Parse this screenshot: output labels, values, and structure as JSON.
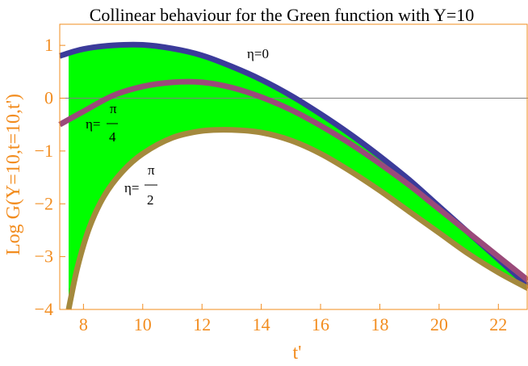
{
  "chart_data": {
    "type": "area",
    "title": "Collinear behaviour for the Green function with Y=10",
    "xlabel": "t'",
    "ylabel": "Log G(Y=10,t=10,t')",
    "xlim": [
      7.2,
      23
    ],
    "ylim": [
      -4,
      1.4
    ],
    "xticks": [
      "8",
      "10",
      "12",
      "14",
      "16",
      "18",
      "20",
      "22"
    ],
    "yticks": [
      "1",
      "0",
      "−1",
      "−2",
      "−3",
      "−4"
    ],
    "grid": false,
    "zero_line": true,
    "fill_between": {
      "upper": "eta=0",
      "lower": "eta=pi/2",
      "from_x": 7.5,
      "color": "#00ff00"
    },
    "series": [
      {
        "name": "η=0",
        "color": "#3b3b9a",
        "x": [
          7.2,
          8,
          9,
          10,
          11,
          12,
          13,
          14,
          15,
          16,
          17,
          18,
          19,
          20,
          21,
          22,
          23
        ],
        "y": [
          0.8,
          0.93,
          1.0,
          1.01,
          0.94,
          0.81,
          0.6,
          0.35,
          0.05,
          -0.3,
          -0.68,
          -1.1,
          -1.55,
          -2.05,
          -2.55,
          -3.05,
          -3.55
        ]
      },
      {
        "name": "η=π/4",
        "color": "#9a4a7a",
        "x": [
          7.2,
          8,
          9,
          10,
          11,
          12,
          13,
          14,
          15,
          16,
          17,
          18,
          19,
          20,
          21,
          22,
          23
        ],
        "y": [
          -0.5,
          -0.25,
          0.05,
          0.22,
          0.3,
          0.3,
          0.2,
          0.02,
          -0.22,
          -0.52,
          -0.86,
          -1.24,
          -1.65,
          -2.1,
          -2.55,
          -3.0,
          -3.45
        ]
      },
      {
        "name": "η=π/2",
        "color": "#a4893d",
        "x": [
          7.5,
          7.8,
          8.2,
          8.7,
          9.3,
          10,
          11,
          12,
          13,
          14,
          15,
          16,
          17,
          18,
          19,
          20,
          21,
          22,
          23
        ],
        "y": [
          -4.0,
          -3.2,
          -2.45,
          -1.85,
          -1.4,
          -1.05,
          -0.75,
          -0.62,
          -0.6,
          -0.65,
          -0.8,
          -1.05,
          -1.38,
          -1.75,
          -2.15,
          -2.55,
          -2.95,
          -3.3,
          -3.6
        ]
      }
    ],
    "annotations": {
      "eta0": {
        "text": "η=0"
      },
      "eta_pi4": {
        "lhs": "η=",
        "num": "π",
        "den": "4"
      },
      "eta_pi2": {
        "lhs": "η=",
        "num": "π",
        "den": "2"
      }
    }
  }
}
